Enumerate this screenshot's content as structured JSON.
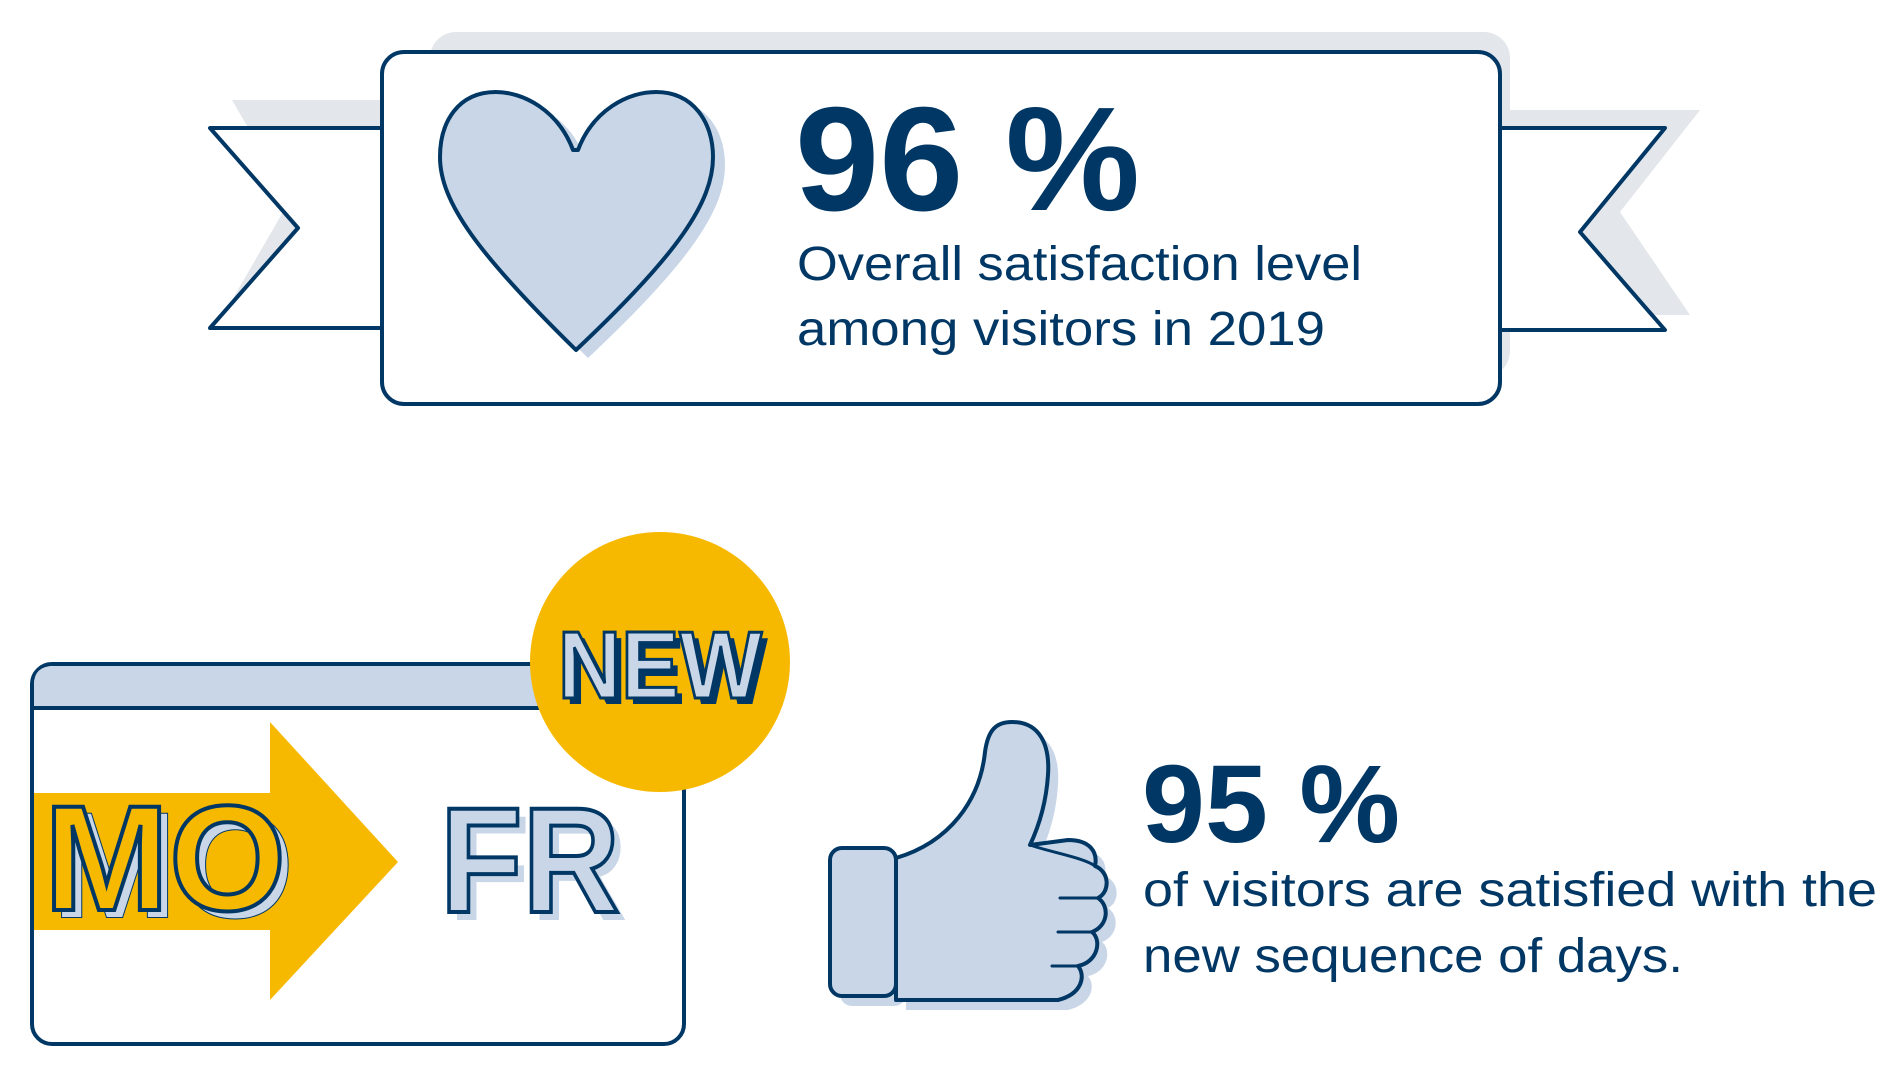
{
  "colors": {
    "navy": "#003764",
    "light_blue": "#c8d6e7",
    "gray_shadow": "#e3e6ea",
    "yellow": "#f7b900",
    "white": "#ffffff"
  },
  "stat_top": {
    "value": "96 %",
    "line1": "Overall satisfaction level",
    "line2": "among visitors in 2019",
    "icon": "heart-icon"
  },
  "stat_bottom": {
    "value": "95 %",
    "line1": "of visitors are satisfied with the",
    "line2": "new sequence of days.",
    "icon": "thumbs-up-icon"
  },
  "calendar": {
    "badge": "NEW",
    "from_day": "MO",
    "to_day": "FR",
    "icon": "calendar-icon"
  }
}
